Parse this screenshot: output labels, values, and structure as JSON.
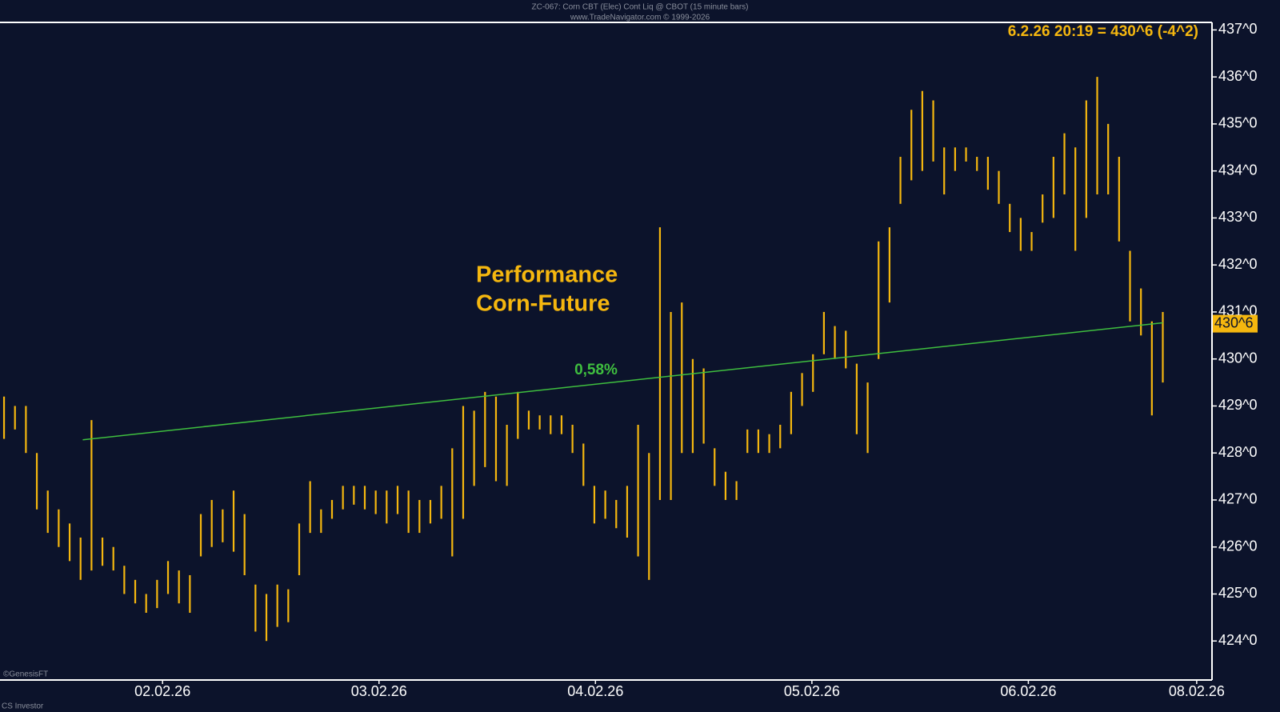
{
  "chart_data": {
    "type": "ohlc",
    "title": "ZC-067:  Corn CBT (Elec) Cont Liq @ CBOT  (15 minute bars)",
    "subtitle": "www.TradeNavigator.com © 1999-2026",
    "info": "6.2.26 20:19 = 430^6 (-4^2)",
    "annotation": [
      "Performance",
      "Corn-Future"
    ],
    "footer": "©GenesisFT",
    "footer2": "CS Investor",
    "color": "#f5b70f",
    "series": [
      {
        "highs": [
          429.2,
          429.0,
          429.0,
          428.0,
          427.2,
          426.8,
          426.5,
          426.2,
          428.7,
          426.2,
          426.0,
          425.6,
          425.3,
          425.0,
          425.3,
          425.7,
          425.5,
          425.4,
          426.7,
          427.0,
          426.8,
          427.2,
          426.7,
          425.2,
          425.0,
          425.2,
          425.1,
          426.5,
          427.4,
          426.8,
          427.0,
          427.3,
          427.3,
          427.3,
          427.2,
          427.2,
          427.3,
          427.2,
          427.0,
          427.0,
          427.3,
          428.1,
          429.0,
          428.9,
          429.3,
          429.2,
          428.6,
          429.3,
          428.9,
          428.8,
          428.8,
          428.8,
          428.6,
          428.2,
          427.3,
          427.2,
          427.0,
          427.3,
          428.6,
          428.0,
          432.8,
          431.0,
          431.2,
          430.0,
          429.8,
          428.1,
          427.6,
          427.4,
          428.5,
          428.5,
          428.4,
          428.6,
          429.3,
          429.7,
          430.1,
          431.0,
          430.7,
          430.6,
          429.9,
          429.5,
          432.5,
          432.8,
          434.3,
          435.3,
          435.7,
          435.5,
          434.5,
          434.5,
          434.5,
          434.3,
          434.3,
          434.0,
          433.3,
          433.0,
          432.7,
          433.5,
          434.3,
          434.8,
          434.5,
          435.5,
          436.0,
          435.0,
          434.3,
          432.3,
          431.5,
          430.8,
          431.0
        ],
        "lows": [
          428.3,
          428.5,
          428.0,
          426.8,
          426.3,
          426.0,
          425.7,
          425.3,
          425.5,
          425.6,
          425.5,
          425.0,
          424.8,
          424.6,
          424.7,
          425.0,
          424.8,
          424.6,
          425.8,
          426.0,
          426.1,
          425.9,
          425.4,
          424.2,
          424.0,
          424.3,
          424.4,
          425.4,
          426.3,
          426.3,
          426.6,
          426.8,
          426.9,
          426.8,
          426.7,
          426.5,
          426.7,
          426.3,
          426.3,
          426.5,
          426.6,
          425.8,
          426.6,
          427.3,
          427.7,
          427.4,
          427.3,
          428.3,
          428.5,
          428.5,
          428.4,
          428.4,
          428.0,
          427.3,
          426.5,
          426.6,
          426.4,
          426.2,
          425.8,
          425.3,
          427.0,
          427.0,
          428.0,
          428.0,
          428.2,
          427.3,
          427.0,
          427.0,
          428.0,
          428.0,
          428.0,
          428.1,
          428.4,
          429.0,
          429.3,
          430.1,
          430.0,
          429.8,
          428.4,
          428.0,
          430.0,
          431.2,
          433.3,
          433.8,
          434.0,
          434.2,
          433.5,
          434.0,
          434.2,
          434.0,
          433.6,
          433.3,
          432.7,
          432.3,
          432.3,
          432.9,
          433.0,
          433.5,
          432.3,
          433.0,
          433.5,
          433.5,
          432.5,
          430.8,
          430.5,
          428.8,
          429.5
        ]
      }
    ],
    "trendline": {
      "x": [
        7.2,
        106
      ],
      "y": [
        428.28,
        430.77
      ],
      "label": "0,58%",
      "color": "#3fbf3f"
    },
    "last": {
      "value": 430.75,
      "label": "430^6"
    },
    "xlim": [
      -0.37,
      110.5
    ],
    "xticks": [
      {
        "value": 14.5,
        "label": "02.02.26"
      },
      {
        "value": 34.3,
        "label": "03.02.26"
      },
      {
        "value": 54.1,
        "label": "04.02.26"
      },
      {
        "value": 73.9,
        "label": "05.02.26"
      },
      {
        "value": 93.7,
        "label": "06.02.26"
      },
      {
        "value": 109.1,
        "label": "08.02.26"
      }
    ],
    "ylim": [
      423.17,
      437.16
    ],
    "yticks": [
      {
        "value": 424,
        "label": "424^0"
      },
      {
        "value": 425,
        "label": "425^0"
      },
      {
        "value": 426,
        "label": "426^0"
      },
      {
        "value": 427,
        "label": "427^0"
      },
      {
        "value": 428,
        "label": "428^0"
      },
      {
        "value": 429,
        "label": "429^0"
      },
      {
        "value": 430,
        "label": "430^0"
      },
      {
        "value": 431,
        "label": "431^0"
      },
      {
        "value": 432,
        "label": "432^0"
      },
      {
        "value": 433,
        "label": "433^0"
      },
      {
        "value": 434,
        "label": "434^0"
      },
      {
        "value": 435,
        "label": "435^0"
      },
      {
        "value": 436,
        "label": "436^0"
      },
      {
        "value": 437,
        "label": "437^0"
      }
    ]
  }
}
